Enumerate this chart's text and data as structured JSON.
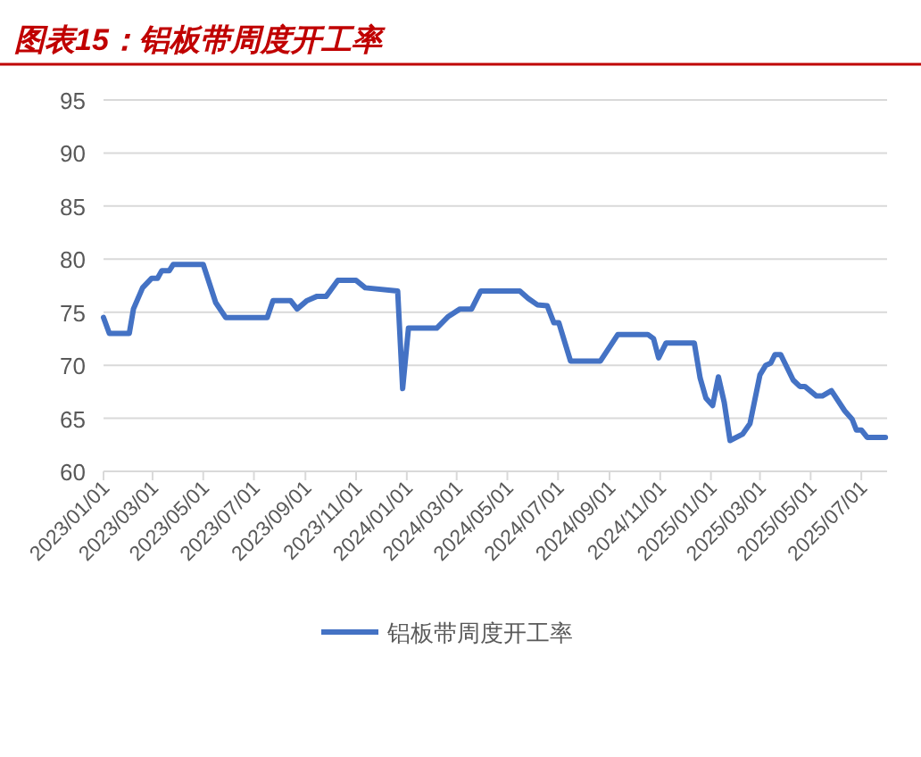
{
  "chart_data": {
    "type": "line",
    "title": "图表15：铝板带周度开工率",
    "x": [
      "2023-01-01",
      "2023-01-08",
      "2023-02-01",
      "2023-02-06",
      "2023-02-17",
      "2023-02-28",
      "2023-03-07",
      "2023-03-12",
      "2023-03-21",
      "2023-03-26",
      "2023-05-01",
      "2023-05-16",
      "2023-05-28",
      "2023-07-17",
      "2023-07-24",
      "2023-08-14",
      "2023-08-22",
      "2023-09-03",
      "2023-09-15",
      "2023-09-26",
      "2023-10-10",
      "2023-11-01",
      "2023-11-12",
      "2023-12-21",
      "2023-12-27",
      "2024-01-03",
      "2024-02-06",
      "2024-02-20",
      "2024-03-05",
      "2024-03-19",
      "2024-03-30",
      "2024-05-16",
      "2024-05-26",
      "2024-06-06",
      "2024-06-18",
      "2024-06-26",
      "2024-07-02",
      "2024-07-16",
      "2024-08-21",
      "2024-09-11",
      "2024-10-17",
      "2024-10-24",
      "2024-10-30",
      "2024-11-08",
      "2024-12-12",
      "2024-12-19",
      "2024-12-26",
      "2025-01-03",
      "2025-01-10",
      "2025-01-17",
      "2025-01-24",
      "2025-02-08",
      "2025-02-17",
      "2025-03-01",
      "2025-03-08",
      "2025-03-14",
      "2025-03-19",
      "2025-03-26",
      "2025-04-10",
      "2025-04-18",
      "2025-04-24",
      "2025-05-08",
      "2025-05-15",
      "2025-05-26",
      "2025-06-11",
      "2025-06-20",
      "2025-06-25",
      "2025-07-01",
      "2025-07-08",
      "2025-07-30"
    ],
    "series": [
      {
        "name": "铝板带周度开工率",
        "color": "#4472c4",
        "values": [
          74.5,
          73,
          73,
          75.3,
          77.3,
          78.2,
          78.2,
          78.9,
          78.9,
          79.5,
          79.5,
          75.9,
          74.5,
          74.5,
          76.1,
          76.1,
          75.3,
          76.1,
          76.5,
          76.5,
          78,
          78,
          77.3,
          77,
          67.8,
          73.5,
          73.5,
          74.6,
          75.3,
          75.3,
          77,
          77,
          76.3,
          75.7,
          75.6,
          74,
          74,
          70.4,
          70.4,
          72.9,
          72.9,
          72.5,
          70.7,
          72.1,
          72.1,
          68.8,
          66.9,
          66.2,
          68.9,
          66.5,
          62.9,
          63.5,
          64.5,
          69.1,
          70,
          70.2,
          71,
          71,
          68.6,
          68,
          68,
          67.1,
          67.1,
          67.6,
          65.7,
          64.9,
          63.9,
          63.9,
          63.2,
          63.2
        ]
      }
    ],
    "xlim": [
      "2023-01-01",
      "2025-08-01"
    ],
    "xticks": [
      {
        "value": "2023-01-01",
        "label": "2023/01/01"
      },
      {
        "value": "2023-03-01",
        "label": "2023/03/01"
      },
      {
        "value": "2023-05-01",
        "label": "2023/05/01"
      },
      {
        "value": "2023-07-01",
        "label": "2023/07/01"
      },
      {
        "value": "2023-09-01",
        "label": "2023/09/01"
      },
      {
        "value": "2023-11-01",
        "label": "2023/11/01"
      },
      {
        "value": "2024-01-01",
        "label": "2024/01/01"
      },
      {
        "value": "2024-03-01",
        "label": "2024/03/01"
      },
      {
        "value": "2024-05-01",
        "label": "2024/05/01"
      },
      {
        "value": "2024-07-01",
        "label": "2024/07/01"
      },
      {
        "value": "2024-09-01",
        "label": "2024/09/01"
      },
      {
        "value": "2024-11-01",
        "label": "2024/11/01"
      },
      {
        "value": "2025-01-01",
        "label": "2025/01/01"
      },
      {
        "value": "2025-03-01",
        "label": "2025/03/01"
      },
      {
        "value": "2025-05-01",
        "label": "2025/05/01"
      },
      {
        "value": "2025-07-01",
        "label": "2025/07/01"
      }
    ],
    "ylim": [
      60,
      95
    ],
    "yticks": [
      60,
      65,
      70,
      75,
      80,
      85,
      90,
      95
    ],
    "grid": "y",
    "legend": "bottom",
    "marker": "none",
    "line_style": "solid"
  }
}
